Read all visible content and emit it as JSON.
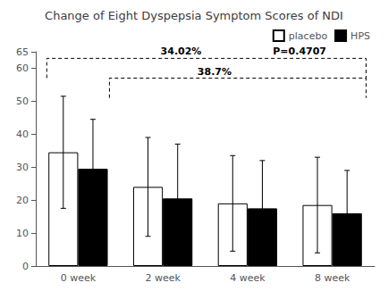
{
  "chart_data": {
    "type": "bar",
    "title": "Change of Eight Dyspepsia Symptom Scores of NDI",
    "categories": [
      "0 week",
      "2 week",
      "4 week",
      "8 week"
    ],
    "series": [
      {
        "name": "placebo",
        "color": "white",
        "values": [
          34.5,
          24.0,
          19.0,
          18.5
        ],
        "errors": [
          17.0,
          15.0,
          14.5,
          14.5
        ]
      },
      {
        "name": "HPS",
        "color": "black",
        "values": [
          29.5,
          20.5,
          17.5,
          16.0
        ],
        "errors": [
          15.0,
          16.5,
          14.5,
          13.0
        ]
      }
    ],
    "ylim": [
      0,
      65
    ],
    "yticks": [
      0,
      10,
      20,
      30,
      40,
      50,
      60
    ],
    "grid": false,
    "legend": "upper right",
    "brackets": [
      {
        "y_top": 63,
        "y_bottom": 57
      },
      {
        "y_top": 57,
        "y_bottom": 51
      }
    ],
    "annotations": [
      {
        "text": "34.02%",
        "y": 63
      },
      {
        "text": "P=0.4707",
        "y": 63
      },
      {
        "text": "38.7%",
        "y": 57
      }
    ]
  }
}
